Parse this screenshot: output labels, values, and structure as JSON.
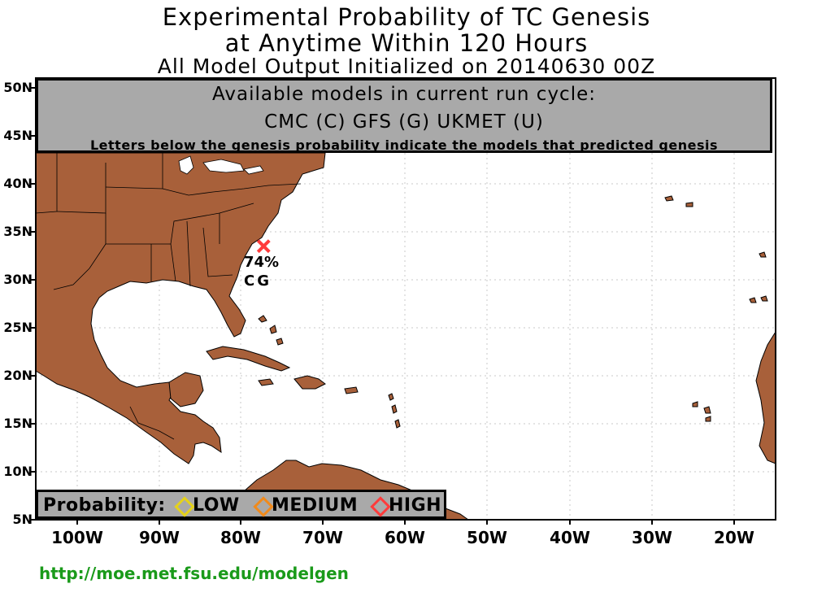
{
  "title": {
    "line1": "Experimental Probability of TC Genesis",
    "line2": "at Anytime Within 120 Hours",
    "line3": "All Model Output Initialized on 20140630 00Z"
  },
  "models_panel": {
    "heading": "Available models in current run cycle:",
    "models": "CMC (C) GFS (G)  UKMET (U)",
    "note": "Letters below the genesis probability indicate the models that predicted genesis"
  },
  "axes": {
    "lat_labels": [
      "50N",
      "45N",
      "40N",
      "35N",
      "30N",
      "25N",
      "20N",
      "15N",
      "10N",
      "5N"
    ],
    "lon_labels": [
      "100W",
      "90W",
      "80W",
      "70W",
      "60W",
      "50W",
      "40W",
      "30W",
      "20W"
    ]
  },
  "storm": {
    "probability": "74%",
    "models": "CG",
    "lat": 33.5,
    "lon": -77.3,
    "marker_color": "#ff3b3b"
  },
  "legend": {
    "label": "Probability:",
    "items": [
      {
        "label": "LOW",
        "color": "#e5d21a"
      },
      {
        "label": "MEDIUM",
        "color": "#f08a1c"
      },
      {
        "label": "HIGH",
        "color": "#ff3b3b"
      }
    ]
  },
  "footer": {
    "url": "http://moe.met.fsu.edu/modelgen"
  },
  "colors": {
    "land": "#a8603a",
    "ocean": "#ffffff",
    "grid": "#c8c8c8",
    "panel": "#a9a9a9"
  }
}
